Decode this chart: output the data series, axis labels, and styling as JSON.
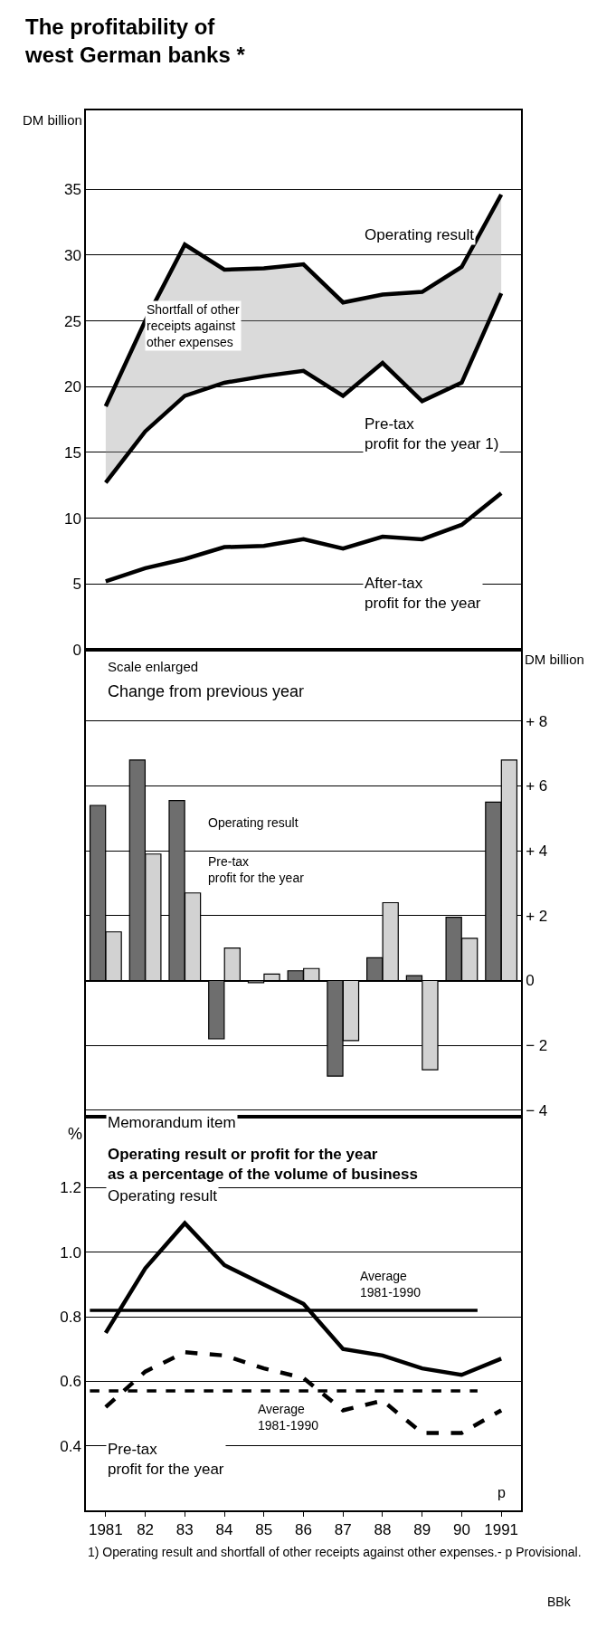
{
  "chart_data": [
    {
      "type": "line",
      "title": "The profitability of\nwest German banks *",
      "ylabel": "DM billion",
      "categories": [
        "1981",
        "82",
        "83",
        "84",
        "85",
        "86",
        "87",
        "88",
        "89",
        "90",
        "1991"
      ],
      "series": [
        {
          "name": "Operating result",
          "color": "#000000",
          "values": [
            18.5,
            25.0,
            30.8,
            28.9,
            29.0,
            29.3,
            26.4,
            27.0,
            27.2,
            29.1,
            34.6
          ],
          "lower": [
            12.7,
            16.6,
            19.3,
            20.3,
            20.8,
            21.2,
            19.3,
            21.8,
            18.9,
            20.3,
            27.1
          ],
          "upper": [
            18.5,
            25.0,
            30.8,
            28.9,
            29.0,
            29.3,
            26.4,
            27.0,
            27.2,
            29.1,
            34.6
          ]
        },
        {
          "name": "Pre-tax\nprofit for the year 1)",
          "color": "#000000",
          "values": [
            12.7,
            16.6,
            19.3,
            20.3,
            20.8,
            21.2,
            19.3,
            21.8,
            18.9,
            20.3,
            27.1
          ]
        },
        {
          "name": "After-tax\nprofit for the year",
          "color": "#000000",
          "values": [
            5.2,
            6.2,
            6.9,
            7.8,
            7.9,
            8.4,
            7.7,
            8.6,
            8.4,
            9.5,
            11.9
          ]
        }
      ],
      "annotations": [
        "Shortfall of other\nreceipts against\nother expenses"
      ],
      "ylim": [
        0,
        41
      ],
      "yticks": [
        0,
        5,
        10,
        15,
        20,
        25,
        30,
        35
      ],
      "grid": "y",
      "legend": false,
      "tick_labels": "y",
      "marker": "none",
      "line_style": "solid"
    },
    {
      "type": "bar",
      "title": "Change from previous year",
      "subtitle": "Scale enlarged",
      "ylabel": "DM billion",
      "categories": [
        "1981",
        "82",
        "83",
        "84",
        "85",
        "86",
        "87",
        "88",
        "89",
        "90",
        "1991"
      ],
      "series": [
        {
          "name": "Operating result",
          "color": "#6e6e6e",
          "values": [
            5.4,
            6.8,
            5.55,
            -1.8,
            -0.07,
            0.3,
            -2.95,
            0.7,
            0.15,
            1.95,
            5.5
          ]
        },
        {
          "name": "Pre-tax\nprofit for the year",
          "color": "#d2d2d2",
          "values": [
            1.5,
            3.9,
            2.7,
            1.0,
            0.2,
            0.37,
            -1.85,
            2.4,
            -2.75,
            1.3,
            6.8
          ]
        }
      ],
      "ylim": [
        -4.2,
        10.2
      ],
      "yticks": [
        {
          "value": -4,
          "label": "− 4"
        },
        {
          "value": -2,
          "label": "− 2"
        },
        0,
        {
          "value": 2,
          "label": "+ 2"
        },
        {
          "value": 4,
          "label": "+ 4"
        },
        {
          "value": 6,
          "label": "+ 6"
        },
        {
          "value": 8,
          "label": "+ 8"
        }
      ],
      "grid": "y",
      "legend": false,
      "tick_labels": "y"
    },
    {
      "type": "line",
      "title": "Operating result or profit for the year\nas a percentage of the volume of business",
      "subtitle": "Memorandum item",
      "ylabel": "%",
      "categories": [
        "1981",
        "82",
        "83",
        "84",
        "85",
        "86",
        "87",
        "88",
        "89",
        "90",
        "1991"
      ],
      "series": [
        {
          "name": "Operating result",
          "color": "#000000",
          "values": [
            0.75,
            0.95,
            1.09,
            0.96,
            0.9,
            0.84,
            0.7,
            0.68,
            0.64,
            0.62,
            0.67
          ]
        },
        {
          "name": "Pre-tax\nprofit for the year",
          "color": "#000000",
          "line_style": "dashed",
          "values": [
            0.52,
            0.63,
            0.69,
            0.68,
            0.64,
            0.61,
            0.51,
            0.54,
            0.44,
            0.44,
            0.51
          ]
        }
      ],
      "ref_lines": [
        {
          "axis": "y",
          "value": 0.82,
          "label": "Average\n1981-1990",
          "color": "#000000",
          "line_style": "solid"
        },
        {
          "axis": "y",
          "value": 0.57,
          "label": "Average\n1981-1990",
          "color": "#000000",
          "line_style": "dashed"
        }
      ],
      "annotations": [
        "p",
        "1) Operating result and shortfall of other receipts against other expenses.- p Provisional.",
        "BBk"
      ],
      "ylim": [
        0.2,
        1.42
      ],
      "yticks": [
        0.4,
        0.6,
        0.8,
        {
          "value": 1.0,
          "label": "1.0"
        },
        1.2
      ],
      "grid": "y",
      "legend": false,
      "marker": "none",
      "line_style": "solid"
    }
  ]
}
